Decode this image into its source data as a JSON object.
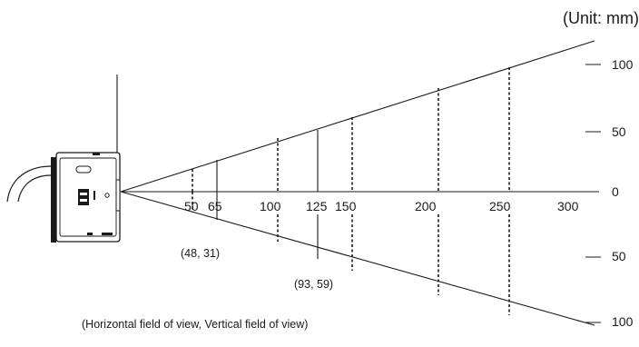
{
  "unit_label": "(Unit: mm)",
  "distance_ticks": [
    "50",
    "65",
    "100",
    "125",
    "150",
    "200",
    "250",
    "300"
  ],
  "scale_labels": {
    "upper_100": "100",
    "upper_50": "50",
    "zero": "0",
    "lower_50": "50",
    "lower_100": "100"
  },
  "fov_annotations": [
    "(48, 31)",
    "(93, 59)"
  ],
  "legend_note": "(Horizontal field of view, Vertical field of view)",
  "colors": {
    "line": "#1a1a1a",
    "background": "#ffffff"
  }
}
